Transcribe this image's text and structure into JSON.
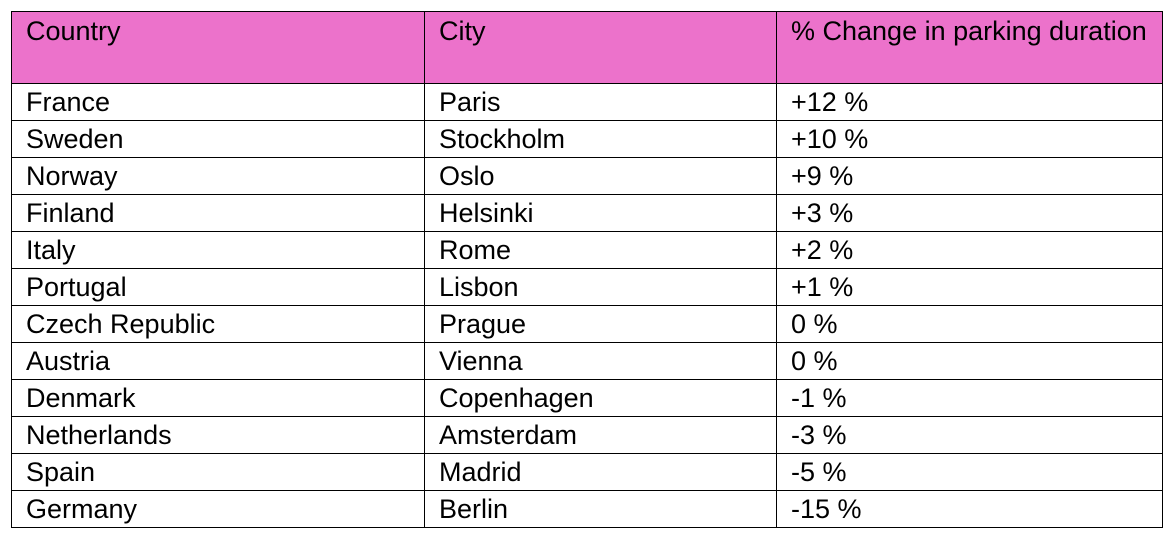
{
  "table": {
    "headers": [
      "Country",
      "City",
      "% Change in parking duration"
    ],
    "header_bg": "#ec72cb",
    "rows": [
      [
        "France",
        "Paris",
        "+12 %"
      ],
      [
        "Sweden",
        "Stockholm",
        "+10 %"
      ],
      [
        "Norway",
        "Oslo",
        "+9 %"
      ],
      [
        "Finland",
        "Helsinki",
        "+3 %"
      ],
      [
        "Italy",
        "Rome",
        "+2 %"
      ],
      [
        "Portugal",
        "Lisbon",
        "+1 %"
      ],
      [
        "Czech Republic",
        "Prague",
        "0 %"
      ],
      [
        "Austria",
        "Vienna",
        "0 %"
      ],
      [
        "Denmark",
        "Copenhagen",
        "-1 %"
      ],
      [
        "Netherlands",
        "Amsterdam",
        "-3 %"
      ],
      [
        "Spain",
        "Madrid",
        "-5 %"
      ],
      [
        "Germany",
        "Berlin",
        "-15 %"
      ]
    ]
  }
}
